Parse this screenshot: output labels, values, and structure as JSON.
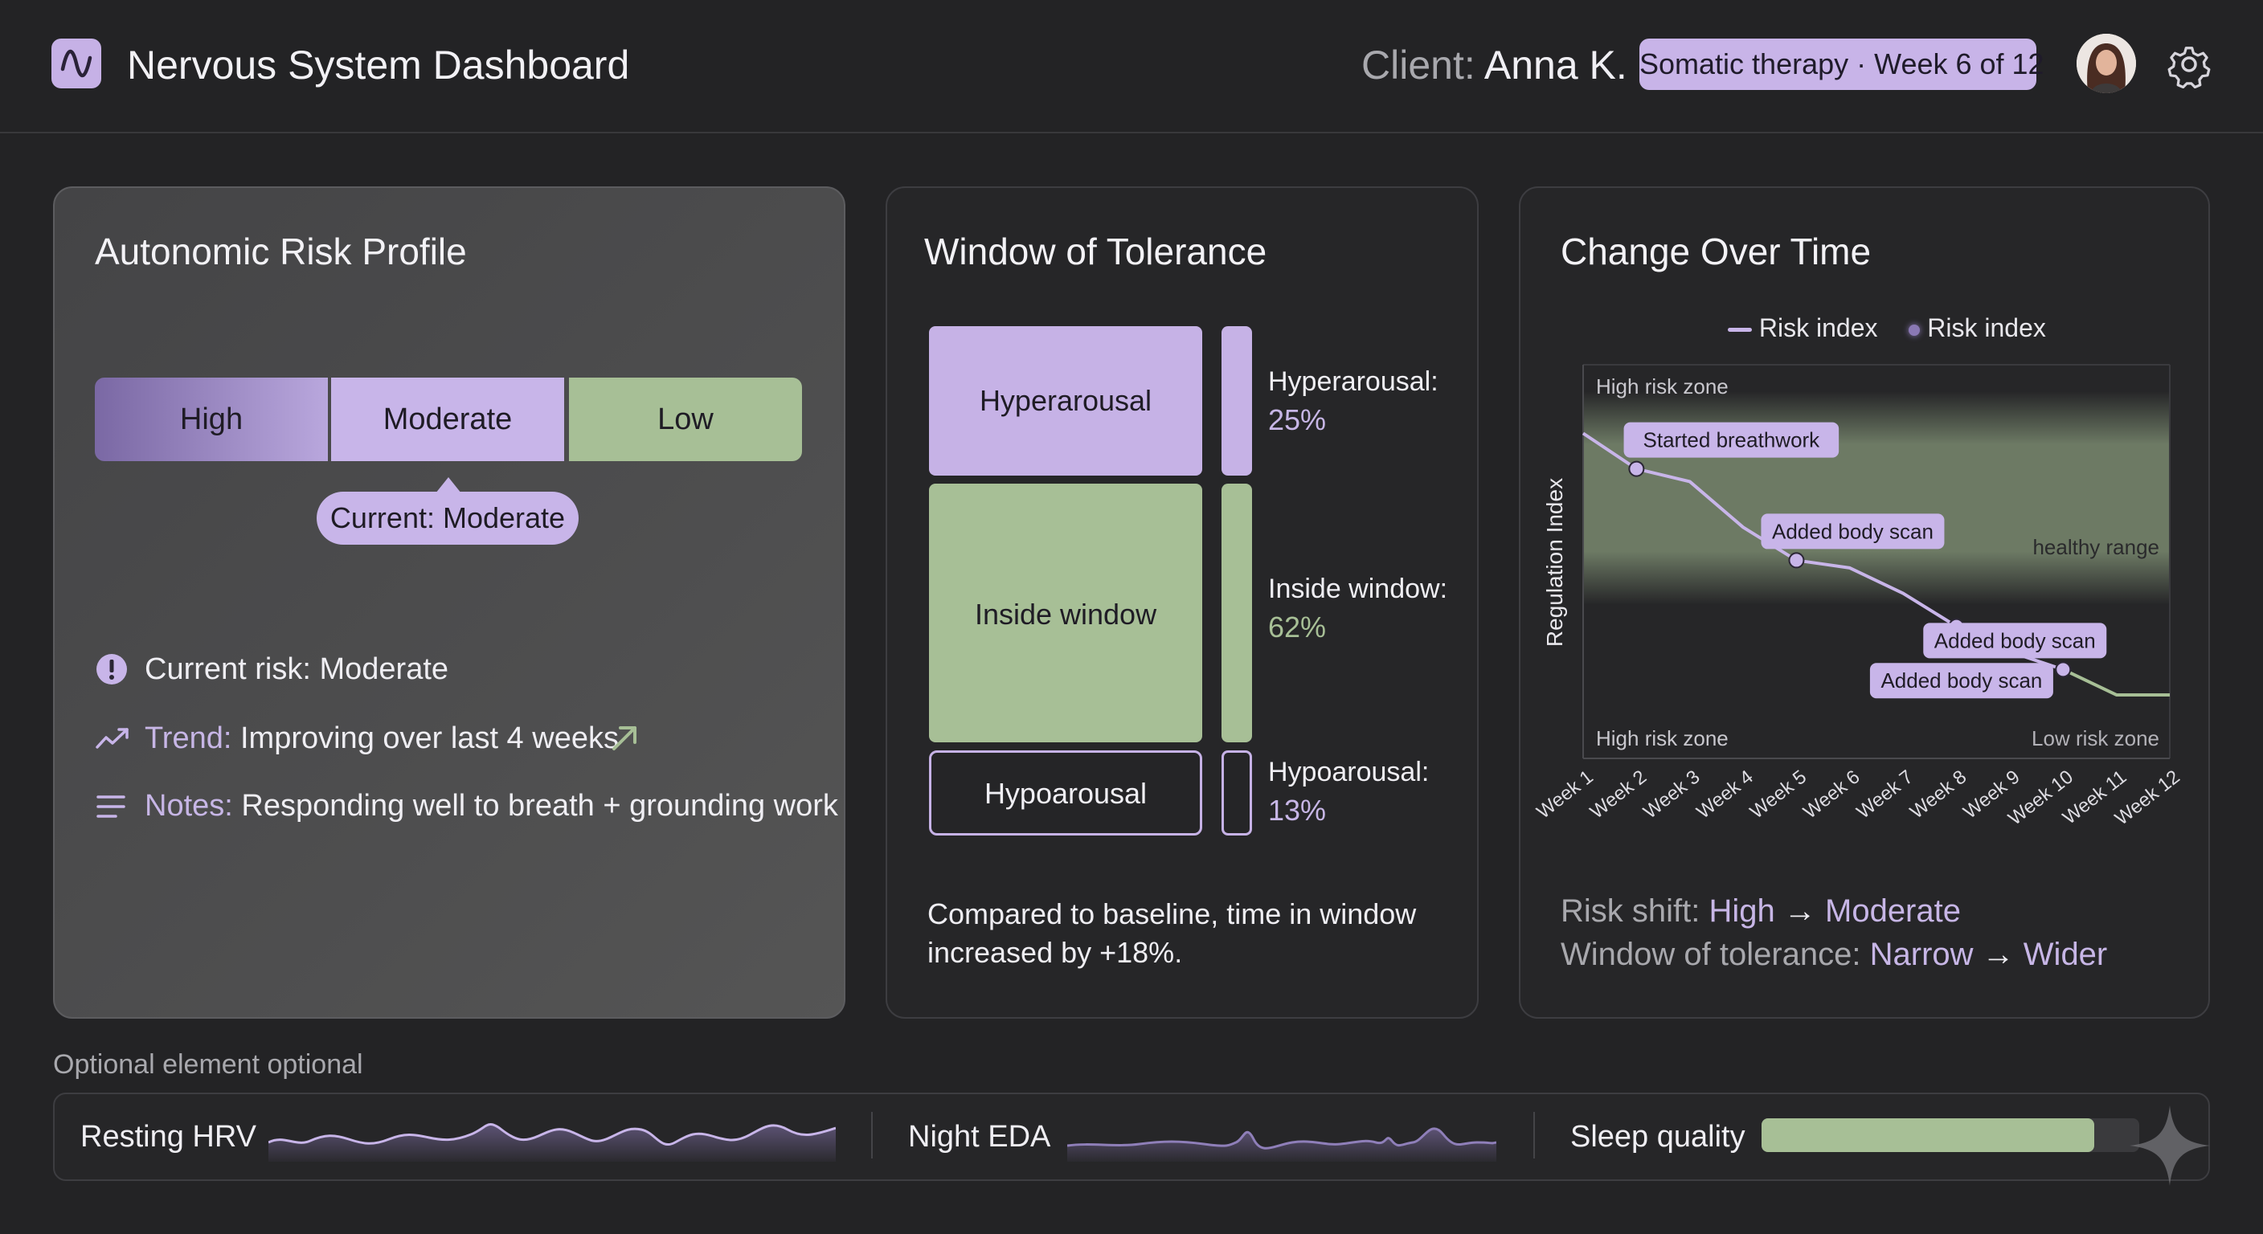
{
  "header": {
    "app_title": "Nervous System Dashboard",
    "client_label": "Client:",
    "client_name": "Anna K.",
    "therapy_badge": "Somatic therapy · Week 6 of 12"
  },
  "risk_profile": {
    "title": "Autonomic Risk Profile",
    "scale": [
      "High",
      "Moderate",
      "Low"
    ],
    "current_pill": "Current: Moderate",
    "current_risk": "Current risk: Moderate",
    "trend_label": "Trend:",
    "trend_value": "Improving over last 4 weeks",
    "notes_label": "Notes:",
    "notes_value": "Responding well to breath + grounding work"
  },
  "window_of_tolerance": {
    "title": "Window of Tolerance",
    "zones": [
      {
        "block_label": "Hyperarousal",
        "side_label": "Hyperarousal:",
        "percent": "25%",
        "value": 25
      },
      {
        "block_label": "Inside window",
        "side_label": "Inside window:",
        "percent": "62%",
        "value": 62
      },
      {
        "block_label": "Hypoarousal",
        "side_label": "Hypoarousal:",
        "percent": "13%",
        "value": 13
      }
    ],
    "summary": "Compared to baseline, time in window increased by +18%."
  },
  "change_over_time": {
    "title": "Change Over Time",
    "risk_shift_label": "Risk shift:",
    "risk_shift_from": "High",
    "risk_shift_to": "Moderate",
    "wot_label": "Window of tolerance:",
    "wot_from": "Narrow",
    "wot_to": "Wider"
  },
  "chart_data": {
    "type": "line",
    "legend": [
      "Risk index",
      "Risk index"
    ],
    "ylabel": "Regulation Index",
    "categories": [
      "Week 1",
      "Week 2",
      "Week 3",
      "Week 4",
      "Week 5",
      "Week 6",
      "Week 7",
      "Week 8",
      "Week 9",
      "Week 10",
      "Week 11",
      "Week 12"
    ],
    "values": [
      0.93,
      0.79,
      0.74,
      0.56,
      0.43,
      0.4,
      0.3,
      0.17,
      0.07,
      0.0,
      -0.1,
      -0.1
    ],
    "ylim": [
      -0.35,
      1.2
    ],
    "healthy_range": [
      0.35,
      1.0
    ],
    "markers": [
      1,
      4,
      7,
      9
    ],
    "zone_labels": {
      "top_left": "High risk zone",
      "bottom_left": "High risk zone",
      "bottom_right": "Low risk zone",
      "band": "healthy range"
    },
    "annotations": [
      {
        "text": "Started breathwork",
        "week": 2
      },
      {
        "text": "Added body scan",
        "week": 5
      },
      {
        "text": "Added body scan",
        "week": 10
      },
      {
        "text": "Added body scan",
        "week": 9
      }
    ],
    "grid": false,
    "legend_position": "top"
  },
  "bottom": {
    "optional_label": "Optional element optional",
    "hrv_label": "Resting HRV",
    "eda_label": "Night EDA",
    "sleep_label": "Sleep quality",
    "sleep_value": 0.88
  },
  "colors": {
    "accent": "#c8b5e9",
    "green": "#a7bf96",
    "background": "#232325"
  }
}
